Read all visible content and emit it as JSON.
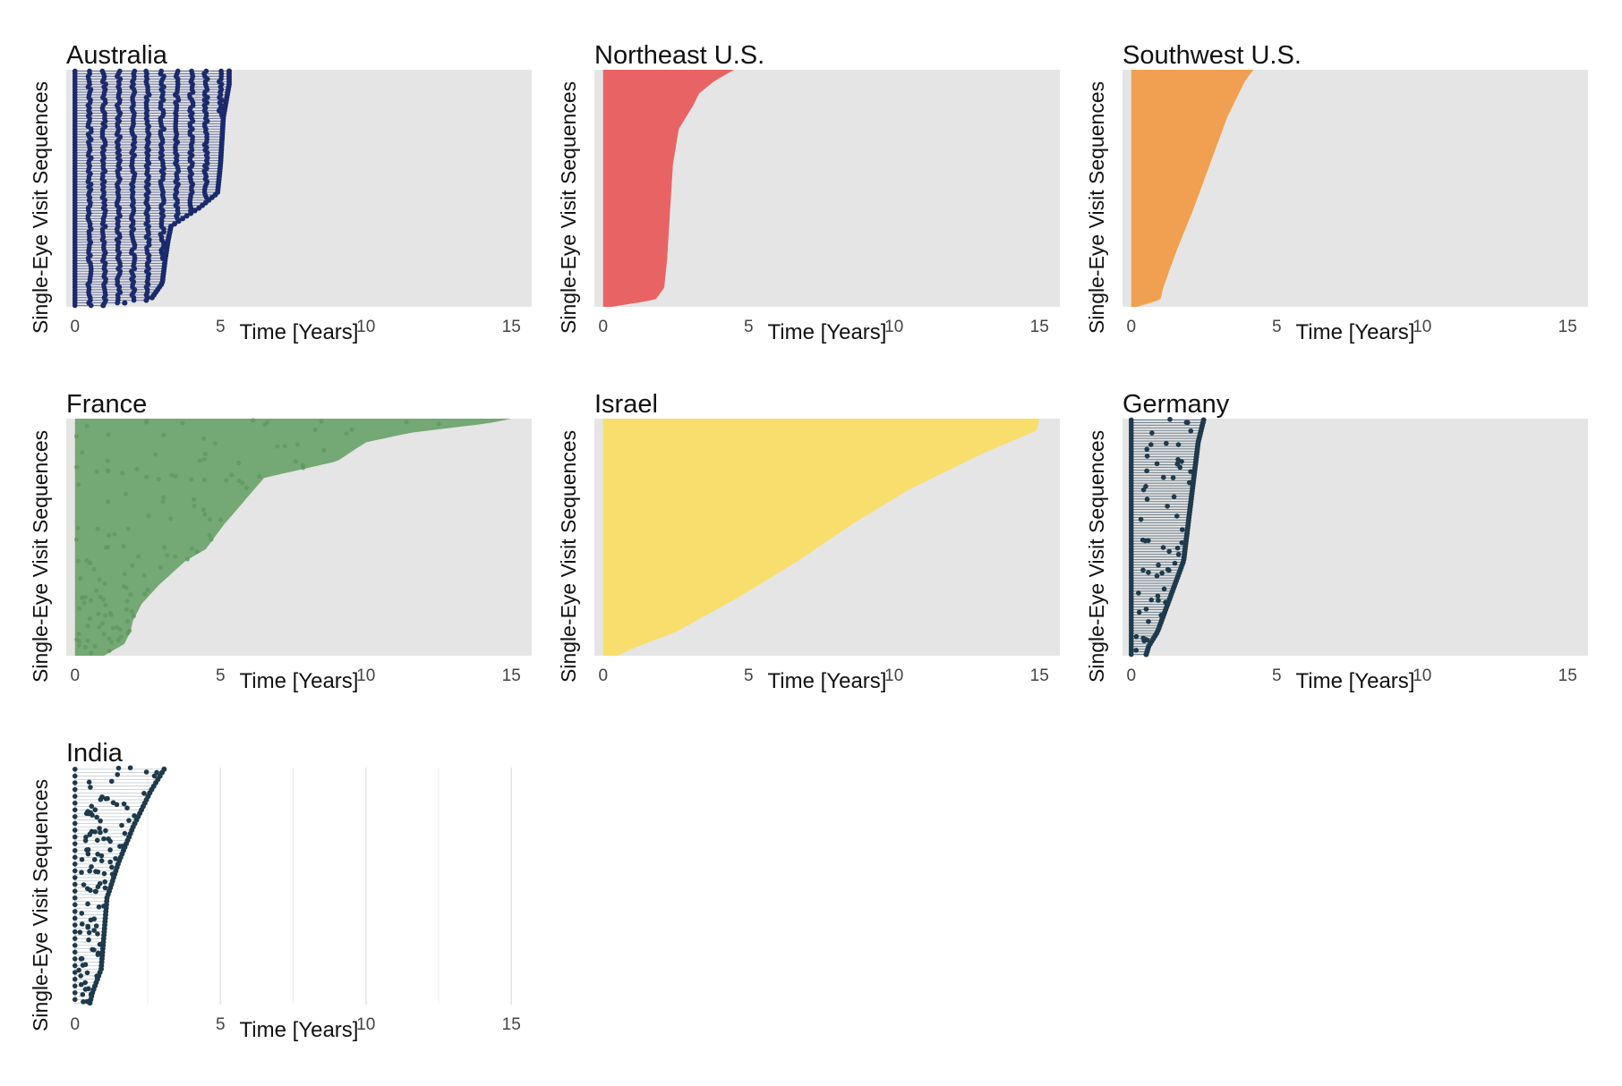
{
  "chart_data": [
    {
      "type": "scatter",
      "title": "Australia",
      "xlabel": "Time [Years]",
      "ylabel": "Single-Eye Visit Sequences",
      "xlim": [
        -0.3,
        15.7
      ],
      "xticks": [
        0,
        5,
        10,
        15
      ],
      "color": "#1a2a6c",
      "style": "dots",
      "background": "#e5e5e5",
      "x_end_profile": [
        [
          0.0,
          5.3
        ],
        [
          0.06,
          5.3
        ],
        [
          0.2,
          5.1
        ],
        [
          0.4,
          5.0
        ],
        [
          0.52,
          4.9
        ],
        [
          0.58,
          4.3
        ],
        [
          0.62,
          3.8
        ],
        [
          0.66,
          3.3
        ],
        [
          0.72,
          3.2
        ],
        [
          0.8,
          3.1
        ],
        [
          0.9,
          3.0
        ],
        [
          0.97,
          2.6
        ],
        [
          1.0,
          0.6
        ]
      ]
    },
    {
      "type": "scatter",
      "title": "Northeast U.S.",
      "xlabel": "Time [Years]",
      "ylabel": "Single-Eye Visit Sequences",
      "xlim": [
        -0.3,
        15.7
      ],
      "xticks": [
        0,
        5,
        10,
        15
      ],
      "color": "#e86464",
      "style": "area",
      "background": "#e5e5e5",
      "x_end_profile": [
        [
          0.0,
          4.5
        ],
        [
          0.05,
          3.8
        ],
        [
          0.1,
          3.3
        ],
        [
          0.15,
          3.1
        ],
        [
          0.25,
          2.6
        ],
        [
          0.4,
          2.4
        ],
        [
          0.6,
          2.3
        ],
        [
          0.8,
          2.2
        ],
        [
          0.92,
          2.1
        ],
        [
          0.97,
          1.8
        ],
        [
          1.0,
          0.3
        ]
      ]
    },
    {
      "type": "scatter",
      "title": "Southwest U.S.",
      "xlabel": "Time [Years]",
      "ylabel": "Single-Eye Visit Sequences",
      "xlim": [
        -0.3,
        15.7
      ],
      "xticks": [
        0,
        5,
        10,
        15
      ],
      "color": "#f0a050",
      "style": "area",
      "background": "#e5e5e5",
      "x_end_profile": [
        [
          0.0,
          4.2
        ],
        [
          0.05,
          3.9
        ],
        [
          0.2,
          3.3
        ],
        [
          0.4,
          2.7
        ],
        [
          0.6,
          2.1
        ],
        [
          0.75,
          1.6
        ],
        [
          0.85,
          1.3
        ],
        [
          0.92,
          1.1
        ],
        [
          0.97,
          1.0
        ],
        [
          1.0,
          0.2
        ]
      ]
    },
    {
      "type": "scatter",
      "title": "France",
      "xlabel": "Time [Years]",
      "ylabel": "Single-Eye Visit Sequences",
      "xlim": [
        -0.3,
        15.7
      ],
      "xticks": [
        0,
        5,
        10,
        15
      ],
      "color": "#74a874",
      "style": "area",
      "background": "#e5e5e5",
      "x_end_profile": [
        [
          0.0,
          15.0
        ],
        [
          0.02,
          14.2
        ],
        [
          0.06,
          11.5
        ],
        [
          0.1,
          10.0
        ],
        [
          0.18,
          9.0
        ],
        [
          0.25,
          6.5
        ],
        [
          0.35,
          5.8
        ],
        [
          0.45,
          5.1
        ],
        [
          0.55,
          4.5
        ],
        [
          0.6,
          3.8
        ],
        [
          0.7,
          2.9
        ],
        [
          0.78,
          2.3
        ],
        [
          0.85,
          2.0
        ],
        [
          0.9,
          1.9
        ],
        [
          0.95,
          1.7
        ],
        [
          1.0,
          1.0
        ]
      ]
    },
    {
      "type": "scatter",
      "title": "Israel",
      "xlabel": "Time [Years]",
      "ylabel": "Single-Eye Visit Sequences",
      "xlim": [
        -0.3,
        15.7
      ],
      "xticks": [
        0,
        5,
        10,
        15
      ],
      "color": "#f8de6c",
      "style": "area",
      "background": "#e5e5e5",
      "x_end_profile": [
        [
          0.0,
          15.0
        ],
        [
          0.05,
          14.9
        ],
        [
          0.15,
          13.0
        ],
        [
          0.3,
          10.5
        ],
        [
          0.45,
          8.5
        ],
        [
          0.6,
          6.7
        ],
        [
          0.75,
          4.7
        ],
        [
          0.9,
          2.5
        ],
        [
          0.97,
          1.0
        ],
        [
          1.0,
          0.5
        ]
      ]
    },
    {
      "type": "scatter",
      "title": "Germany",
      "xlabel": "Time [Years]",
      "ylabel": "Single-Eye Visit Sequences",
      "xlim": [
        -0.3,
        15.7
      ],
      "xticks": [
        0,
        5,
        10,
        15
      ],
      "color": "#1e3a4c",
      "style": "dots",
      "background": "#e5e5e5",
      "x_end_profile": [
        [
          0.0,
          2.5
        ],
        [
          0.1,
          2.3
        ],
        [
          0.3,
          2.1
        ],
        [
          0.5,
          1.9
        ],
        [
          0.6,
          1.8
        ],
        [
          0.7,
          1.5
        ],
        [
          0.8,
          1.2
        ],
        [
          0.9,
          0.9
        ],
        [
          0.96,
          0.6
        ],
        [
          1.0,
          0.5
        ]
      ]
    },
    {
      "type": "scatter",
      "title": "India",
      "xlabel": "Time [Years]",
      "ylabel": "Single-Eye Visit Sequences",
      "xlim": [
        -0.3,
        15.7
      ],
      "xticks": [
        0,
        5,
        10,
        15
      ],
      "color": "#1e3a4c",
      "style": "sparse",
      "background": "#ffffff",
      "x_end_profile": [
        [
          0.0,
          3.1
        ],
        [
          0.1,
          2.6
        ],
        [
          0.25,
          2.0
        ],
        [
          0.4,
          1.5
        ],
        [
          0.55,
          1.1
        ],
        [
          0.7,
          1.0
        ],
        [
          0.85,
          0.9
        ],
        [
          0.95,
          0.6
        ],
        [
          1.0,
          0.5
        ]
      ]
    }
  ]
}
